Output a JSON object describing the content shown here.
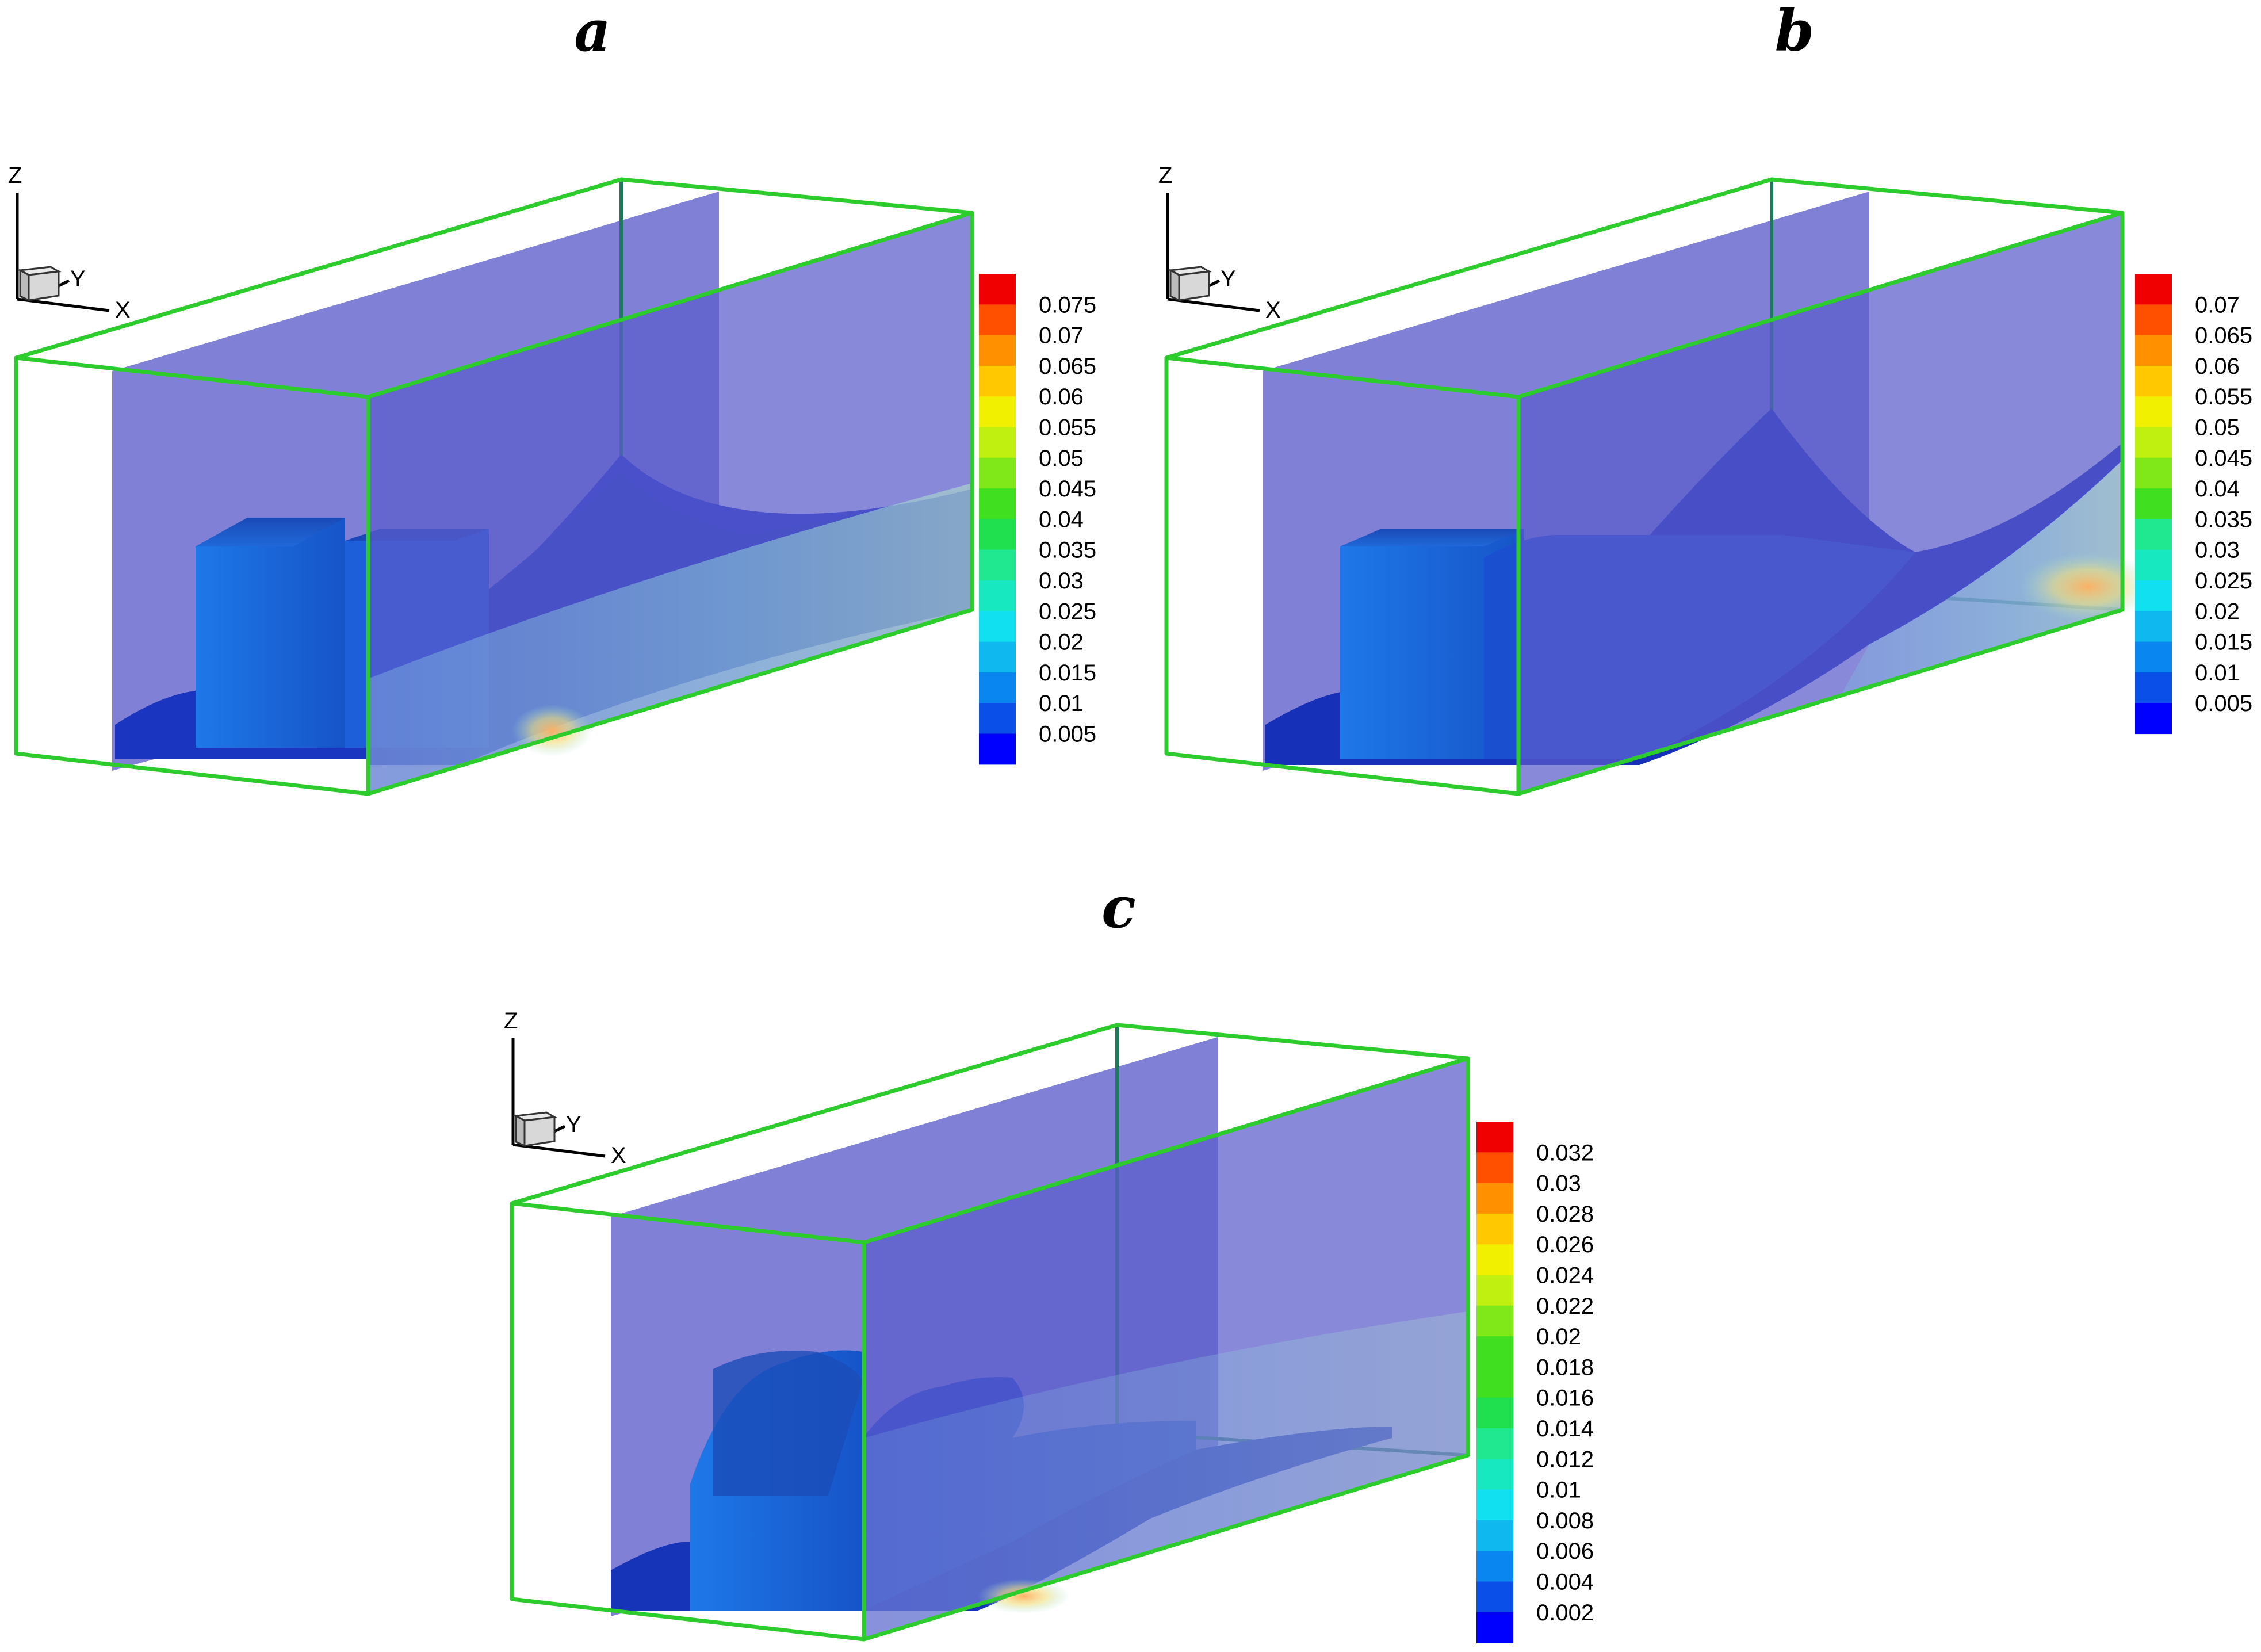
{
  "figure": {
    "panels": [
      {
        "label": "a",
        "axes": {
          "z": "Z",
          "y": "Y",
          "x": "X"
        },
        "contour_levels": [
          "0.075",
          "0.07",
          "0.065",
          "0.06",
          "0.055",
          "0.05",
          "0.045",
          "0.04",
          "0.035",
          "0.03",
          "0.025",
          "0.02",
          "0.015",
          "0.01",
          "0.005"
        ]
      },
      {
        "label": "b",
        "axes": {
          "z": "Z",
          "y": "Y",
          "x": "X"
        },
        "contour_levels": [
          "0.07",
          "0.065",
          "0.06",
          "0.055",
          "0.05",
          "0.045",
          "0.04",
          "0.035",
          "0.03",
          "0.025",
          "0.02",
          "0.015",
          "0.01",
          "0.005"
        ]
      },
      {
        "label": "c",
        "axes": {
          "z": "Z",
          "y": "Y",
          "x": "X"
        },
        "contour_levels": [
          "0.032",
          "0.03",
          "0.028",
          "0.026",
          "0.024",
          "0.022",
          "0.02",
          "0.018",
          "0.016",
          "0.014",
          "0.012",
          "0.01",
          "0.008",
          "0.006",
          "0.004",
          "0.002"
        ]
      }
    ]
  },
  "colors": {
    "box_edge": "#2dcc2d",
    "slice_plane": "#6a6ad0",
    "isosurface": "#1a3fc8",
    "background": "#ffffff",
    "colormap": [
      "#0000ff",
      "#0a50e8",
      "#0a86f0",
      "#10b8f0",
      "#10e0f0",
      "#18e8c0",
      "#20e890",
      "#20e050",
      "#40e020",
      "#80e818",
      "#c0f010",
      "#f0f000",
      "#ffc800",
      "#ff9000",
      "#ff5000",
      "#f00000"
    ]
  }
}
